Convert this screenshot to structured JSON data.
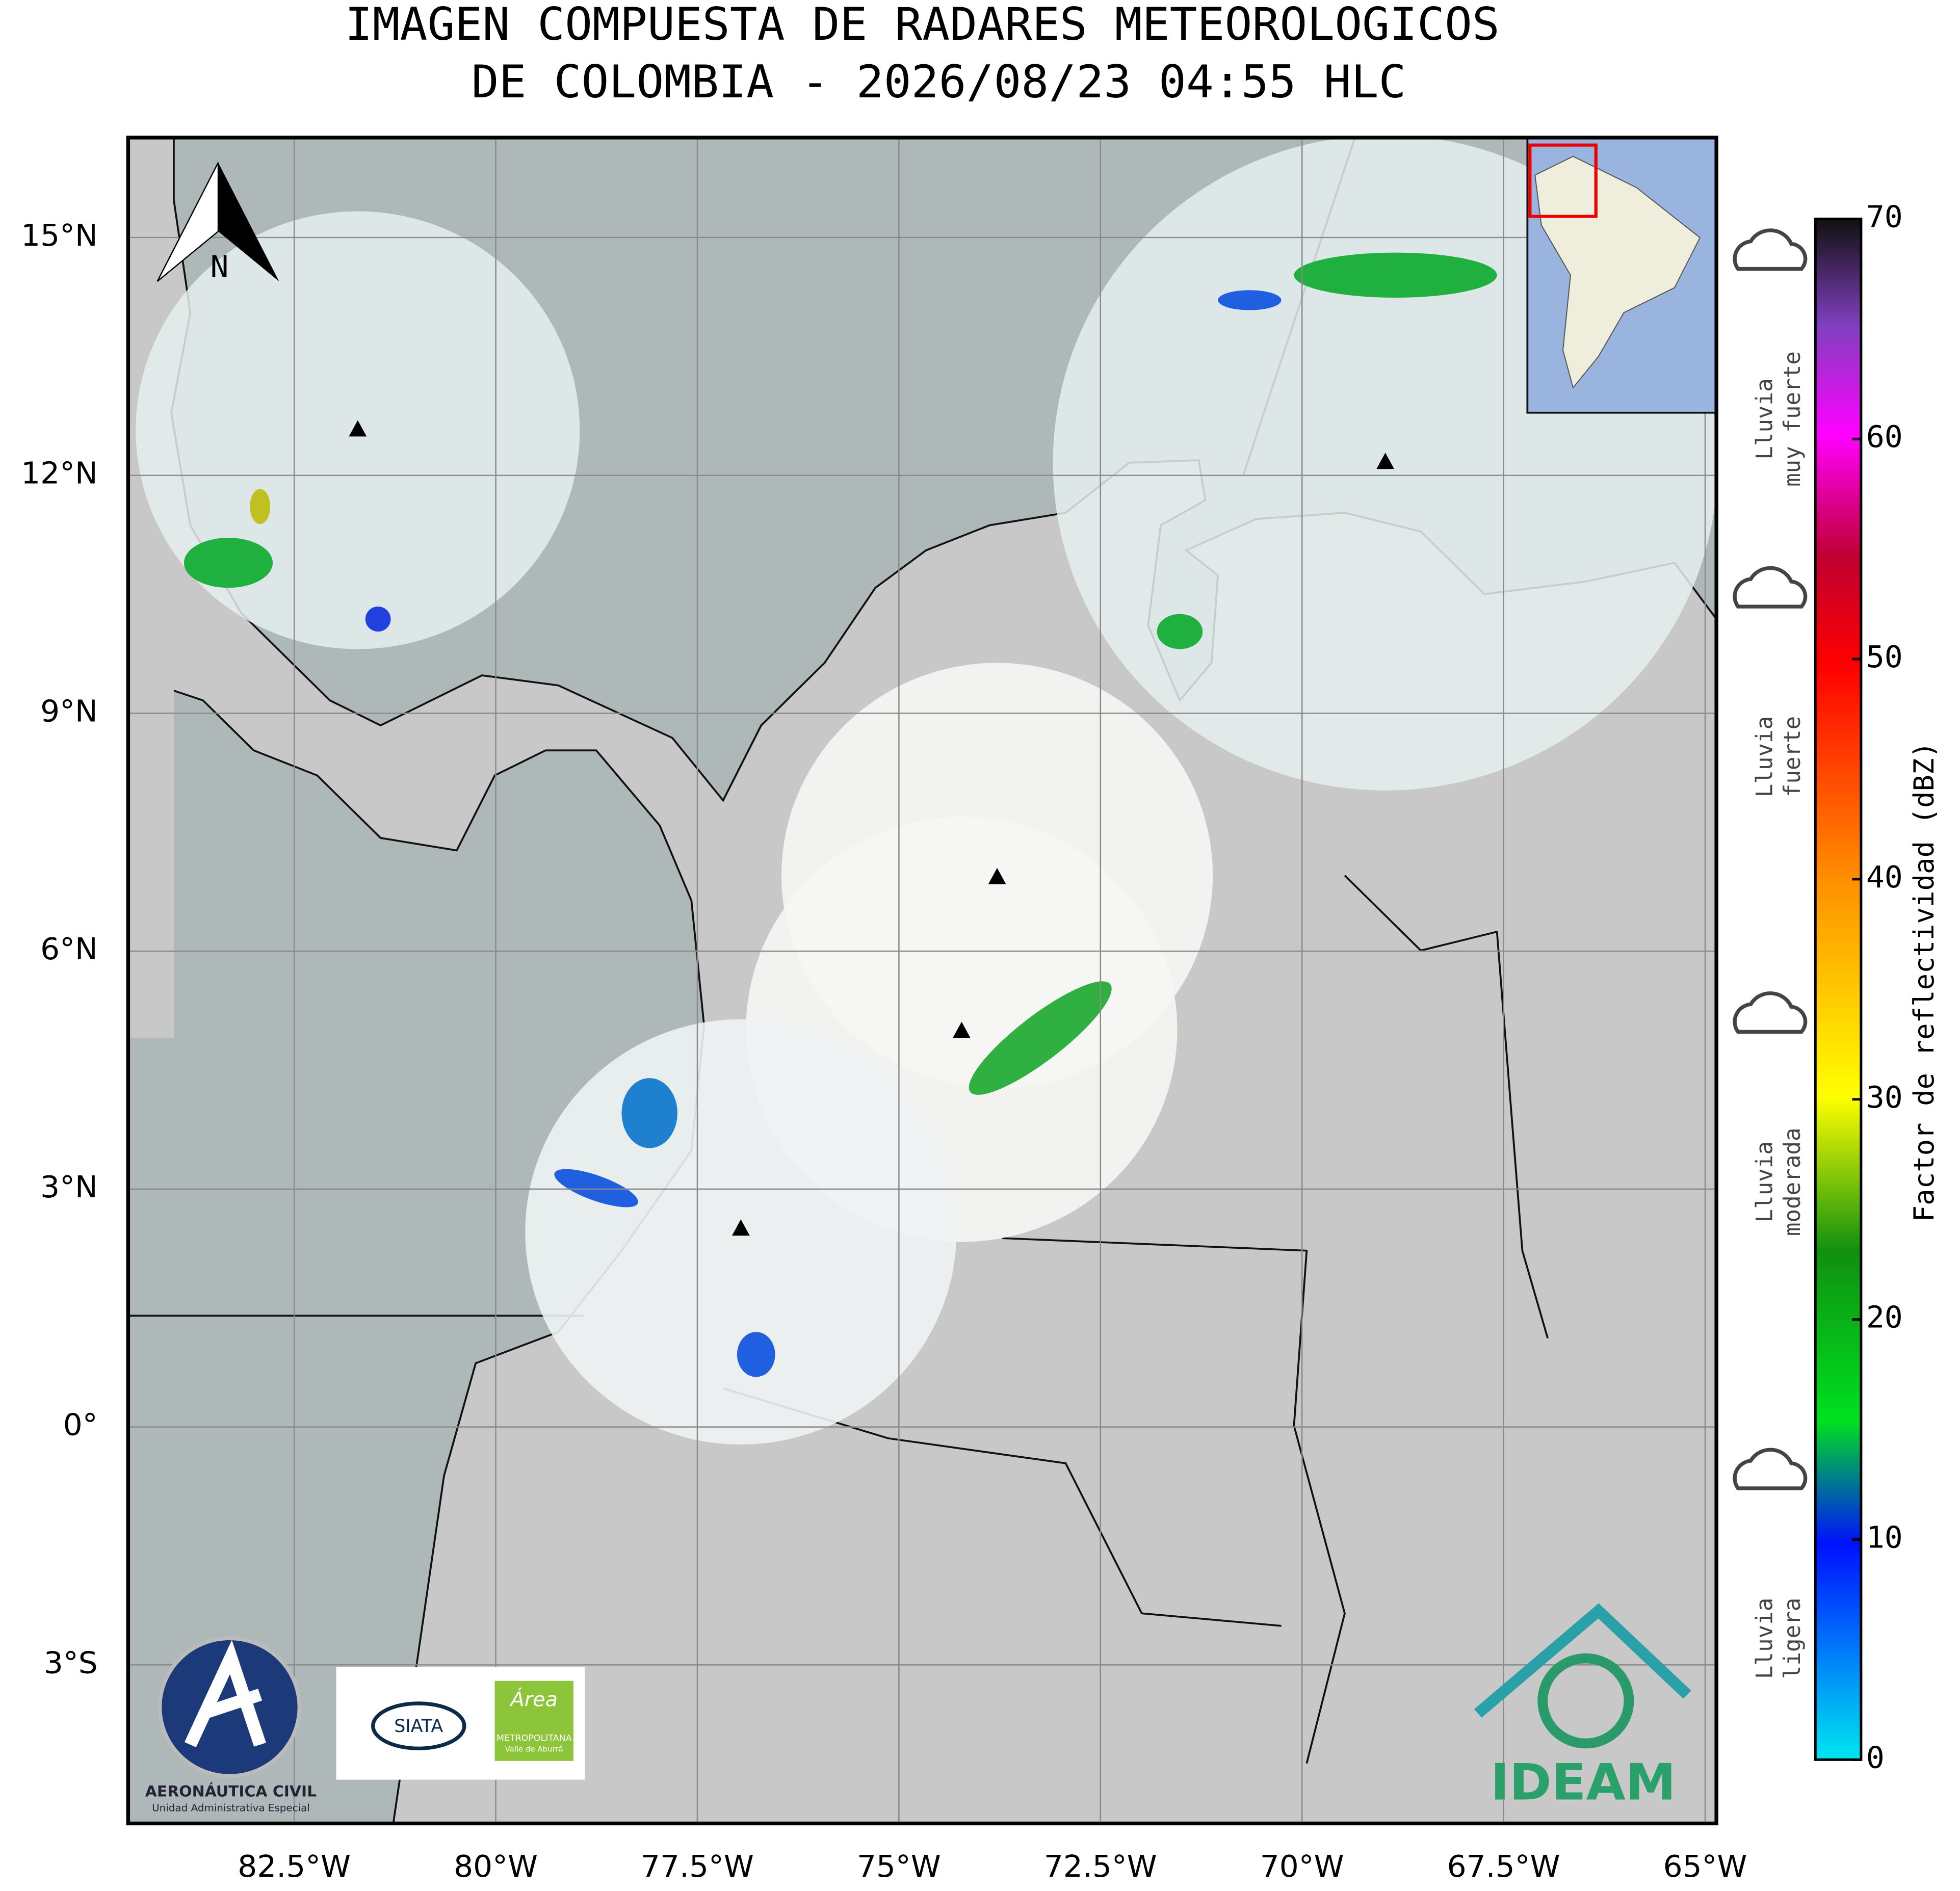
{
  "title": {
    "line1": "IMAGEN COMPUESTA DE RADARES METEOROLOGICOS",
    "line2": "DE COLOMBIA - 2026/08/23 04:55 HLC"
  },
  "map": {
    "lon_range": [
      -84.56,
      -64.86
    ],
    "lat_range": [
      -5.0,
      16.26
    ],
    "lon_ticks": [
      {
        "value": -82.5,
        "label": "82.5°W"
      },
      {
        "value": -80,
        "label": "80°W"
      },
      {
        "value": -77.5,
        "label": "77.5°W"
      },
      {
        "value": -75,
        "label": "75°W"
      },
      {
        "value": -72.5,
        "label": "72.5°W"
      },
      {
        "value": -70,
        "label": "70°W"
      },
      {
        "value": -67.5,
        "label": "67.5°W"
      },
      {
        "value": -65,
        "label": "65°W"
      }
    ],
    "lat_ticks": [
      {
        "value": 15,
        "label": "15°N"
      },
      {
        "value": 12,
        "label": "12°N"
      },
      {
        "value": 9,
        "label": "9°N"
      },
      {
        "value": 6,
        "label": "6°N"
      },
      {
        "value": 3,
        "label": "3°N"
      },
      {
        "value": 0,
        "label": "0°"
      },
      {
        "value": -3,
        "label": "3°S"
      }
    ],
    "north_label": "N"
  },
  "colorbar": {
    "label": "Factor de reflectividad (dBZ)",
    "ticks": [
      0,
      10,
      20,
      30,
      40,
      50,
      60,
      70
    ]
  },
  "rain_labels": [
    {
      "line1": "Lluvia",
      "line2": "muy fuerte"
    },
    {
      "line1": "Lluvia",
      "line2": "fuerte"
    },
    {
      "line1": "Lluvia",
      "line2": "moderada"
    },
    {
      "line1": "Lluvia",
      "line2": "ligera"
    }
  ],
  "logos": {
    "aerocivil_name": "AERONÁUTICA CIVIL",
    "aerocivil_sub": "Unidad Administrativa Especial",
    "siata": "SIATA",
    "area": "Área",
    "area_sub1": "METROPOLITANA",
    "area_sub2": "Valle de Aburrá",
    "ideam": "IDEAM"
  }
}
